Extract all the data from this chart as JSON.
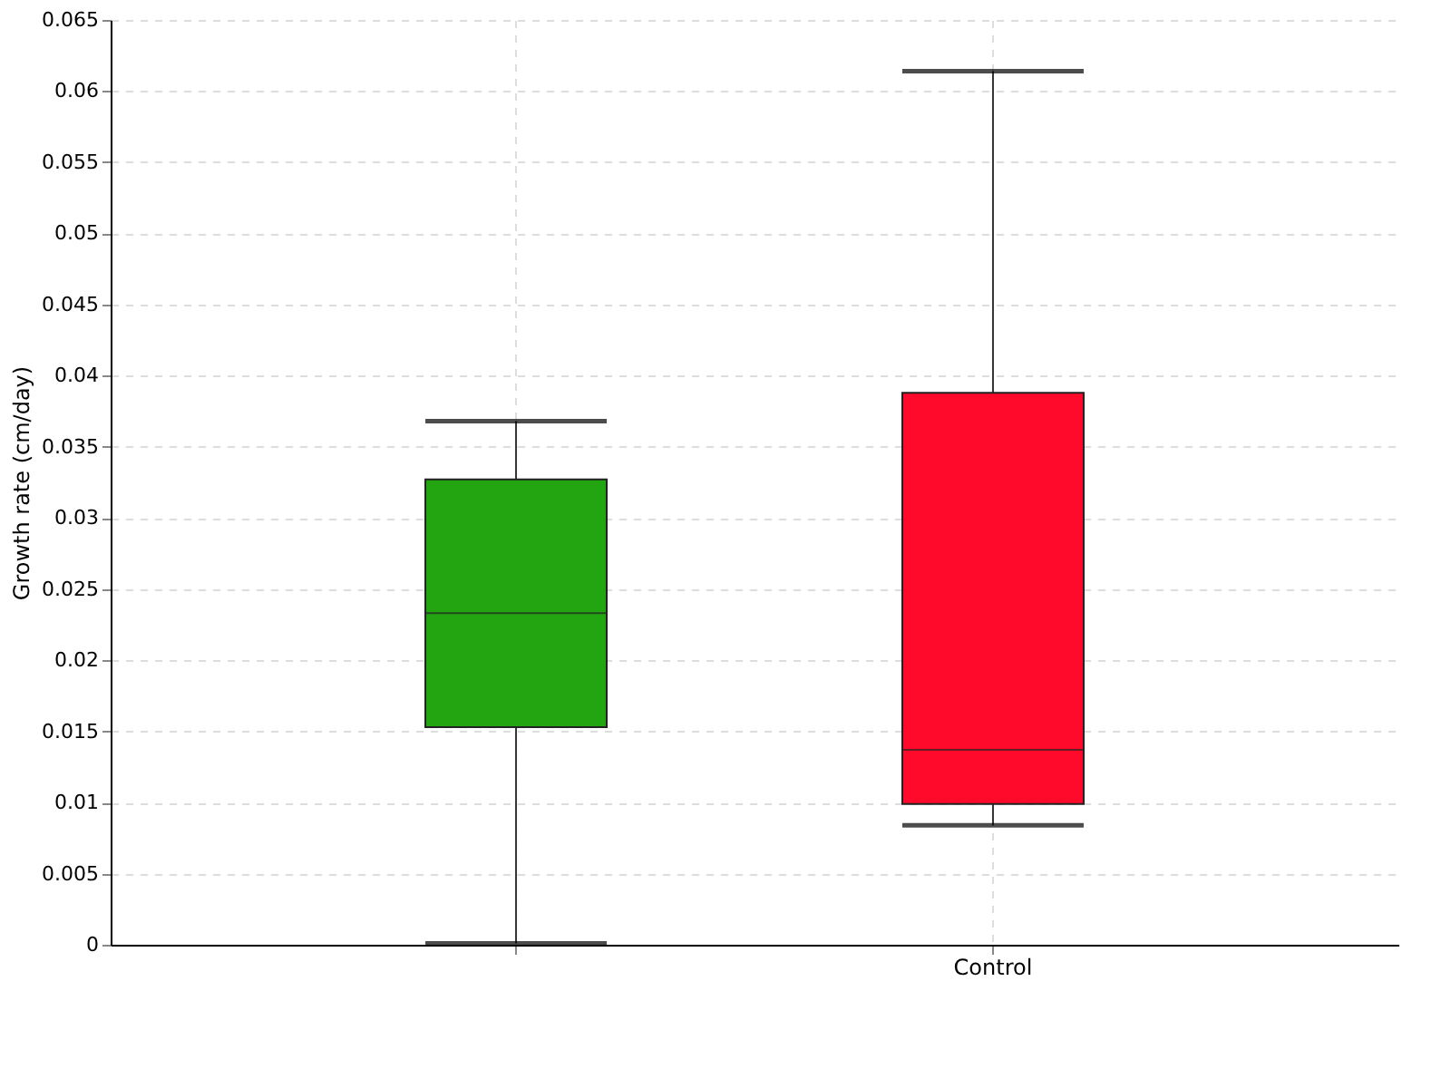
{
  "chart_data": {
    "type": "box",
    "ylabel": "Growth rate (cm/day)",
    "categories": [
      null,
      "Control"
    ],
    "colors": [
      "#22a511",
      "#ff0a2a"
    ],
    "boxes": [
      {
        "low": 0.0001,
        "q1": 0.0153,
        "median": 0.0233,
        "q3": 0.0327,
        "high": 0.0368
      },
      {
        "low": 0.0084,
        "q1": 0.0099,
        "median": 0.0137,
        "q3": 0.0388,
        "high": 0.0614
      }
    ],
    "ylim": [
      0,
      0.065
    ],
    "yticks": [
      0,
      0.005,
      0.01,
      0.015,
      0.02,
      0.025,
      0.03,
      0.035,
      0.04,
      0.045,
      0.05,
      0.055,
      0.06,
      0.065
    ],
    "grid": true
  }
}
